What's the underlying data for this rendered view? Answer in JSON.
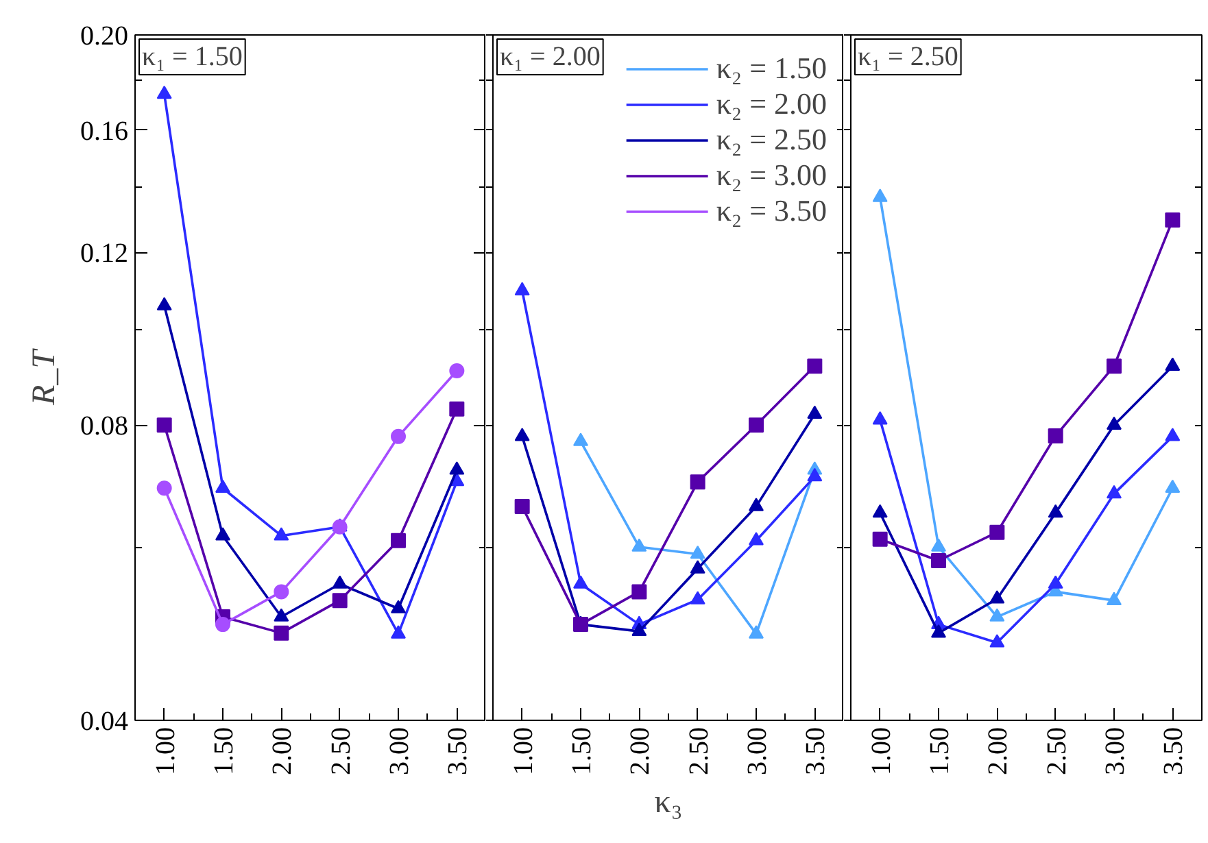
{
  "chart_data": [
    {
      "type": "line",
      "title": "κ₁ = 1.50",
      "ylabel": "R_T",
      "log": true,
      "legend": false,
      "line_style": "solid",
      "grid": false,
      "x": [
        1.0,
        1.5,
        2.0,
        2.5,
        3.0,
        3.5
      ],
      "xlim": [
        0.75,
        3.75
      ],
      "xticks": [
        {
          "value": 1.0,
          "label": "1.00"
        },
        {
          "value": 1.25,
          "label": null
        },
        {
          "value": 1.5,
          "label": "1.50"
        },
        {
          "value": 1.75,
          "label": null
        },
        {
          "value": 2.0,
          "label": "2.00"
        },
        {
          "value": 2.25,
          "label": null
        },
        {
          "value": 2.5,
          "label": "2.50"
        },
        {
          "value": 2.75,
          "label": null
        },
        {
          "value": 3.0,
          "label": "3.00"
        },
        {
          "value": 3.25,
          "label": null
        },
        {
          "value": 3.5,
          "label": "3.50"
        }
      ],
      "ylim": [
        0.04,
        0.2
      ],
      "yticks": [
        {
          "value": 0.04,
          "label": "0.04"
        },
        {
          "value": 0.06,
          "label": null
        },
        {
          "value": 0.08,
          "label": "0.08"
        },
        {
          "value": 0.1,
          "label": null
        },
        {
          "value": 0.12,
          "label": "0.12"
        },
        {
          "value": 0.14,
          "label": null
        },
        {
          "value": 0.16,
          "label": "0.16"
        },
        {
          "value": 0.18,
          "label": null
        },
        {
          "value": 0.2,
          "label": "0.20"
        }
      ],
      "series": [
        {
          "color": "#2b2bff",
          "marker": "triangle",
          "values": [
            0.174,
            0.069,
            0.0617,
            0.063,
            0.049,
            0.0701
          ]
        },
        {
          "color": "#0000a8",
          "marker": "triangle",
          "values": [
            0.1059,
            0.0617,
            0.051,
            0.0551,
            0.052,
            0.072
          ]
        },
        {
          "color": "#5500aa",
          "marker": "square",
          "values": [
            0.08,
            0.051,
            0.0491,
            0.053,
            0.061,
            0.0831
          ]
        },
        {
          "color": "#a64dff",
          "marker": "circle",
          "values": [
            0.069,
            0.0501,
            0.0541,
            0.063,
            0.0779,
            0.0909
          ]
        }
      ]
    },
    {
      "type": "line",
      "title": "κ₁ = 2.00",
      "xlabel": "κ₃",
      "log": true,
      "legend": "top right",
      "tick_labels": "x",
      "line_style": "solid",
      "grid": false,
      "x": [
        1.0,
        1.5,
        2.0,
        2.5,
        3.0,
        3.5
      ],
      "xlim": [
        0.75,
        3.75
      ],
      "xticks": [
        {
          "value": 1.0,
          "label": "1.00"
        },
        {
          "value": 1.25,
          "label": null
        },
        {
          "value": 1.5,
          "label": "1.50"
        },
        {
          "value": 1.75,
          "label": null
        },
        {
          "value": 2.0,
          "label": "2.00"
        },
        {
          "value": 2.25,
          "label": null
        },
        {
          "value": 2.5,
          "label": "2.50"
        },
        {
          "value": 2.75,
          "label": null
        },
        {
          "value": 3.0,
          "label": "3.00"
        },
        {
          "value": 3.25,
          "label": null
        },
        {
          "value": 3.5,
          "label": "3.50"
        }
      ],
      "ylim": [
        0.04,
        0.2
      ],
      "yticks": [
        {
          "value": 0.04,
          "label": null
        },
        {
          "value": 0.06,
          "label": null
        },
        {
          "value": 0.08,
          "label": null
        },
        {
          "value": 0.1,
          "label": null
        },
        {
          "value": 0.12,
          "label": null
        },
        {
          "value": 0.14,
          "label": null
        },
        {
          "value": 0.16,
          "label": null
        },
        {
          "value": 0.18,
          "label": null
        },
        {
          "value": 0.2,
          "label": null
        }
      ],
      "series": [
        {
          "name": "κ₂ = 1.50",
          "color": "#4da6ff",
          "marker": "triangle",
          "values": [
            null,
            0.077,
            0.0601,
            0.0591,
            0.049,
            0.072
          ]
        },
        {
          "name": "κ₂ = 2.00",
          "color": "#2b2bff",
          "marker": "triangle",
          "values": [
            0.1097,
            0.0551,
            0.0501,
            0.0531,
            0.061,
            0.0709
          ]
        },
        {
          "name": "κ₂ = 2.50",
          "color": "#0000a8",
          "marker": "triangle",
          "values": [
            0.0779,
            0.0501,
            0.0493,
            0.0571,
            0.0661,
            0.0821
          ]
        },
        {
          "name": "κ₂ = 3.00",
          "color": "#5500aa",
          "marker": "square",
          "values": [
            0.0661,
            0.0501,
            0.0541,
            0.07,
            0.08,
            0.0919
          ]
        },
        {
          "name": "κ₂ = 3.50",
          "color": "#a64dff",
          "marker": "circle",
          "values": [
            null,
            null,
            null,
            null,
            null,
            null
          ]
        }
      ]
    },
    {
      "type": "line",
      "title": "κ₁ = 2.50",
      "log": true,
      "legend": false,
      "tick_labels": "x",
      "line_style": "solid",
      "grid": false,
      "x": [
        1.0,
        1.5,
        2.0,
        2.5,
        3.0,
        3.5
      ],
      "xlim": [
        0.75,
        3.75
      ],
      "xticks": [
        {
          "value": 1.0,
          "label": "1.00"
        },
        {
          "value": 1.25,
          "label": null
        },
        {
          "value": 1.5,
          "label": "1.50"
        },
        {
          "value": 1.75,
          "label": null
        },
        {
          "value": 2.0,
          "label": "2.00"
        },
        {
          "value": 2.25,
          "label": null
        },
        {
          "value": 2.5,
          "label": "2.50"
        },
        {
          "value": 2.75,
          "label": null
        },
        {
          "value": 3.0,
          "label": "3.00"
        },
        {
          "value": 3.25,
          "label": null
        },
        {
          "value": 3.5,
          "label": "3.50"
        }
      ],
      "ylim": [
        0.04,
        0.2
      ],
      "yticks": [
        {
          "value": 0.04,
          "label": null
        },
        {
          "value": 0.06,
          "label": null
        },
        {
          "value": 0.08,
          "label": null
        },
        {
          "value": 0.1,
          "label": null
        },
        {
          "value": 0.12,
          "label": null
        },
        {
          "value": 0.14,
          "label": null
        },
        {
          "value": 0.16,
          "label": null
        },
        {
          "value": 0.18,
          "label": null
        },
        {
          "value": 0.2,
          "label": null
        }
      ],
      "series": [
        {
          "color": "#4da6ff",
          "marker": "triangle",
          "values": [
            0.1366,
            0.0601,
            0.051,
            0.0541,
            0.053,
            0.069
          ]
        },
        {
          "color": "#2b2bff",
          "marker": "triangle",
          "values": [
            0.081,
            0.0501,
            0.048,
            0.0551,
            0.0681,
            0.0779
          ]
        },
        {
          "color": "#0000a8",
          "marker": "triangle",
          "values": [
            0.0651,
            0.0491,
            0.0532,
            0.0651,
            0.08,
            0.0919
          ]
        },
        {
          "color": "#5500aa",
          "marker": "square",
          "values": [
            0.0612,
            0.0582,
            0.0622,
            0.078,
            0.0919,
            0.1295
          ]
        }
      ]
    }
  ]
}
